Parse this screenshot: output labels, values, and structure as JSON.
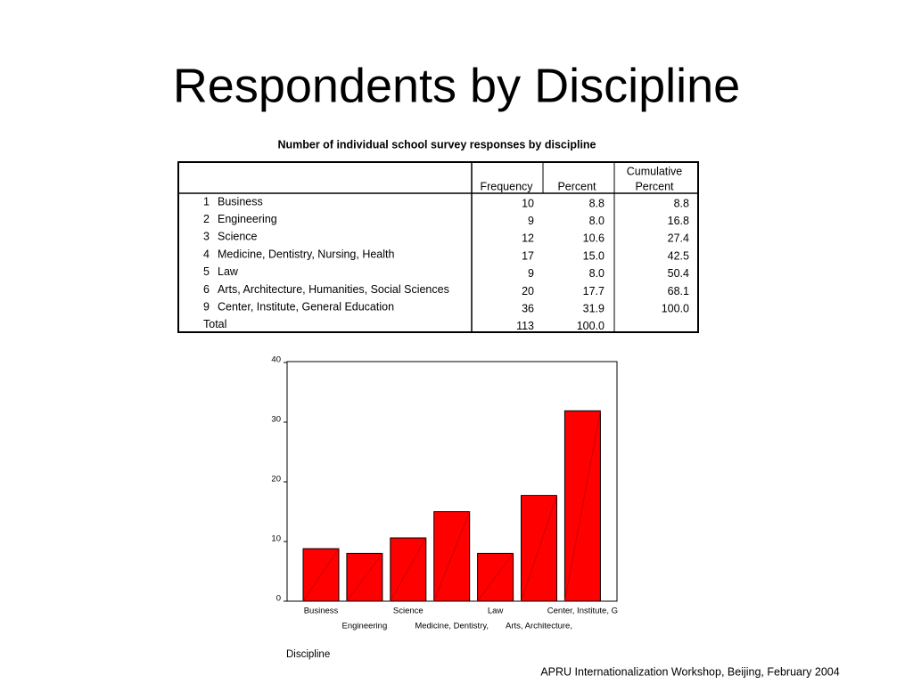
{
  "slide_title": "Respondents by Discipline",
  "table": {
    "title": "Number of individual school survey responses by discipline",
    "columns": [
      "Frequency",
      "Percent",
      "Cumulative",
      "Percent"
    ],
    "rows": [
      {
        "code": "1",
        "name": "Business",
        "frequency": "10",
        "percent": "8.8",
        "cumulative": "8.8"
      },
      {
        "code": "2",
        "name": "Engineering",
        "frequency": "9",
        "percent": "8.0",
        "cumulative": "16.8"
      },
      {
        "code": "3",
        "name": "Science",
        "frequency": "12",
        "percent": "10.6",
        "cumulative": "27.4"
      },
      {
        "code": "4",
        "name": "Medicine, Dentistry, Nursing, Health",
        "frequency": "17",
        "percent": "15.0",
        "cumulative": "42.5"
      },
      {
        "code": "5",
        "name": "Law",
        "frequency": "9",
        "percent": "8.0",
        "cumulative": "50.4"
      },
      {
        "code": "6",
        "name": "Arts, Architecture, Humanities, Social Sciences",
        "frequency": "20",
        "percent": "17.7",
        "cumulative": "68.1"
      },
      {
        "code": "9",
        "name": "Center, Institute, General Education",
        "frequency": "36",
        "percent": "31.9",
        "cumulative": "100.0"
      }
    ],
    "total": {
      "label": "Total",
      "frequency": "113",
      "percent": "100.0"
    }
  },
  "chart_data": {
    "type": "bar",
    "x_label": "Discipline",
    "categories": [
      "Business",
      "Engineering",
      "Science",
      "Medicine, Dentistry,",
      "Law",
      "Arts, Architecture,",
      "Center, Institute, G"
    ],
    "values": [
      8.8,
      8.0,
      10.6,
      15.0,
      8.0,
      17.7,
      31.9
    ],
    "color": "#ff0000",
    "ylim": [
      0,
      40
    ],
    "yticks": [
      0,
      10,
      20,
      30,
      40
    ]
  },
  "footer": "APRU Internationalization Workshop, Beijing, February 2004"
}
